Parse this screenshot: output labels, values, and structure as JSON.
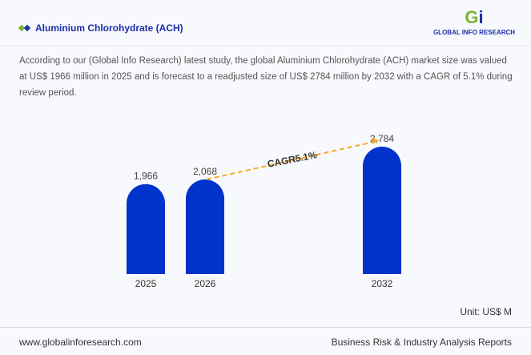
{
  "header": {
    "title": "Aluminium Chlorohydrate (ACH)",
    "logo_text": "GLOBAL INFO RESEARCH"
  },
  "description": "According to our (Global Info Research) latest study, the global Aluminium Chlorohydrate (ACH) market size was valued at US$ 1966 million in 2025 and is forecast to a readjusted size of US$ 2784 million by 2032 with a CAGR of 5.1% during review period.",
  "chart_data": {
    "type": "bar",
    "categories": [
      "2025",
      "2026",
      "2032"
    ],
    "values": [
      1966,
      2068,
      2784
    ],
    "data_labels": [
      "1,966",
      "2,068",
      "2,784"
    ],
    "annotation": "CAGR5.1%",
    "unit": "Unit: US$ M",
    "bar_color": "#0033cc",
    "arrow_color": "#f5a623"
  },
  "footer": {
    "website": "www.globalinforesearch.com",
    "tagline": "Business Risk & Industry Analysis Reports"
  }
}
